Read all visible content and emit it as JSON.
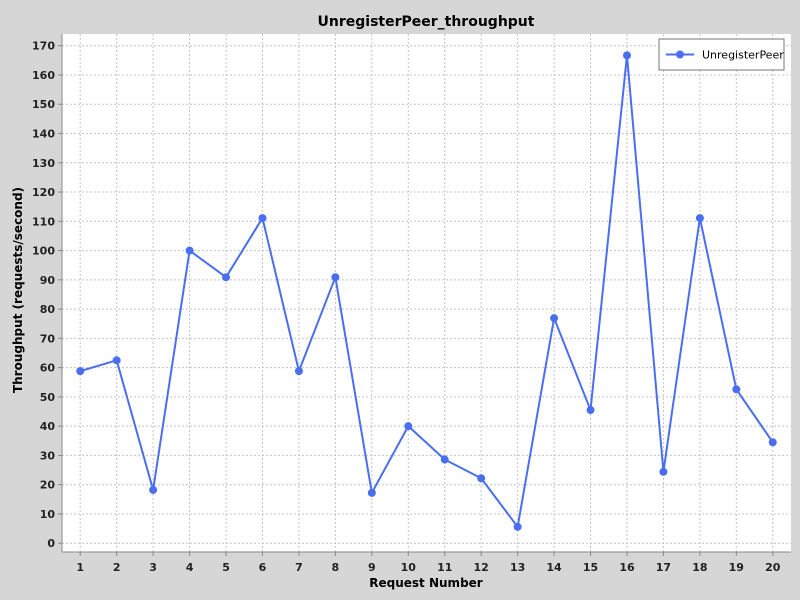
{
  "chart_data": {
    "type": "line",
    "title": "UnregisterPeer_throughput",
    "xlabel": "Request Number",
    "ylabel": "Throughput (requests/second)",
    "x": [
      1,
      2,
      3,
      4,
      5,
      6,
      7,
      8,
      9,
      10,
      11,
      12,
      13,
      14,
      15,
      16,
      17,
      18,
      19,
      20
    ],
    "series": [
      {
        "name": "UnregisterPeer",
        "color": "#4a6ef0",
        "values": [
          58.8,
          62.5,
          18.2,
          100,
          90.9,
          111.1,
          58.8,
          90.9,
          17.2,
          40,
          28.6,
          22.2,
          5.6,
          76.9,
          45.5,
          166.7,
          24.4,
          111.1,
          52.6,
          34.5
        ]
      }
    ],
    "xlim": [
      0.5,
      20.5
    ],
    "ylim": [
      -3,
      174
    ],
    "yticks": [
      0,
      10,
      20,
      30,
      40,
      50,
      60,
      70,
      80,
      90,
      100,
      110,
      120,
      130,
      140,
      150,
      160,
      170
    ],
    "grid": true,
    "legend_position": "top-right",
    "colors": {
      "background": "#d6d6d6",
      "plot_background": "#ffffff",
      "grid": "#c4c4c4",
      "line": "#4a6ef0"
    }
  }
}
